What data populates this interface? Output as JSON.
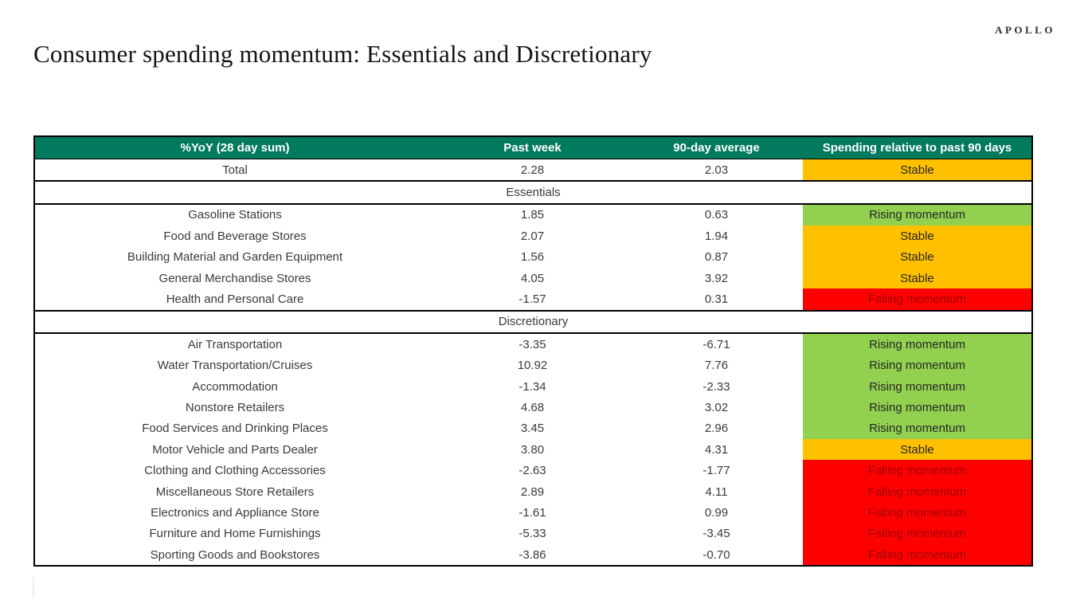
{
  "brand": {
    "logo": "APOLLO"
  },
  "colors": {
    "header_bg": "#017A5E",
    "header_text": "#FFFFFF",
    "cell_text": "#3A3A3A",
    "status": {
      "stable": {
        "bg": "#FFC000",
        "text": "#262626"
      },
      "rising": {
        "bg": "#92D050",
        "text": "#262626"
      },
      "falling": {
        "bg": "#FF0000",
        "text": "#9C0006"
      }
    }
  },
  "chart_data": {
    "type": "table",
    "title": "Consumer spending momentum: Essentials and Discretionary",
    "headers": [
      "%YoY (28 day sum)",
      "Past week",
      "90-day average",
      "Spending relative to past 90 days"
    ],
    "rows": [
      {
        "type": "data",
        "label": "Total",
        "past_week": "2.28",
        "avg_90": "2.03",
        "status": "Stable",
        "state": "stable",
        "divider_below": true
      },
      {
        "type": "section",
        "label": "Essentials",
        "divider_below": true
      },
      {
        "type": "data",
        "label": "Gasoline Stations",
        "past_week": "1.85",
        "avg_90": "0.63",
        "status": "Rising momentum",
        "state": "rising"
      },
      {
        "type": "data",
        "label": "Food and Beverage Stores",
        "past_week": "2.07",
        "avg_90": "1.94",
        "status": "Stable",
        "state": "stable"
      },
      {
        "type": "data",
        "label": "Building Material and Garden Equipment",
        "past_week": "1.56",
        "avg_90": "0.87",
        "status": "Stable",
        "state": "stable"
      },
      {
        "type": "data",
        "label": "General Merchandise Stores",
        "past_week": "4.05",
        "avg_90": "3.92",
        "status": "Stable",
        "state": "stable"
      },
      {
        "type": "data",
        "label": "Health and Personal Care",
        "past_week": "-1.57",
        "avg_90": "0.31",
        "status": "Falling momentum",
        "state": "falling",
        "divider_below": true
      },
      {
        "type": "section",
        "label": "Discretionary",
        "divider_below": true
      },
      {
        "type": "data",
        "label": "Air Transportation",
        "past_week": "-3.35",
        "avg_90": "-6.71",
        "status": "Rising momentum",
        "state": "rising"
      },
      {
        "type": "data",
        "label": "Water Transportation/Cruises",
        "past_week": "10.92",
        "avg_90": "7.76",
        "status": "Rising momentum",
        "state": "rising"
      },
      {
        "type": "data",
        "label": "Accommodation",
        "past_week": "-1.34",
        "avg_90": "-2.33",
        "status": "Rising momentum",
        "state": "rising"
      },
      {
        "type": "data",
        "label": "Nonstore Retailers",
        "past_week": "4.68",
        "avg_90": "3.02",
        "status": "Rising momentum",
        "state": "rising"
      },
      {
        "type": "data",
        "label": "Food Services and Drinking Places",
        "past_week": "3.45",
        "avg_90": "2.96",
        "status": "Rising momentum",
        "state": "rising"
      },
      {
        "type": "data",
        "label": "Motor Vehicle and Parts Dealer",
        "past_week": "3.80",
        "avg_90": "4.31",
        "status": "Stable",
        "state": "stable"
      },
      {
        "type": "data",
        "label": "Clothing and Clothing Accessories",
        "past_week": "-2.63",
        "avg_90": "-1.77",
        "status": "Falling momentum",
        "state": "falling"
      },
      {
        "type": "data",
        "label": "Miscellaneous Store Retailers",
        "past_week": "2.89",
        "avg_90": "4.11",
        "status": "Falling momentum",
        "state": "falling"
      },
      {
        "type": "data",
        "label": "Electronics and Appliance Store",
        "past_week": "-1.61",
        "avg_90": "0.99",
        "status": "Falling momentum",
        "state": "falling"
      },
      {
        "type": "data",
        "label": "Furniture and Home Furnishings",
        "past_week": "-5.33",
        "avg_90": "-3.45",
        "status": "Falling momentum",
        "state": "falling"
      },
      {
        "type": "data",
        "label": "Sporting Goods and Bookstores",
        "past_week": "-3.86",
        "avg_90": "-0.70",
        "status": "Falling momentum",
        "state": "falling"
      }
    ]
  }
}
